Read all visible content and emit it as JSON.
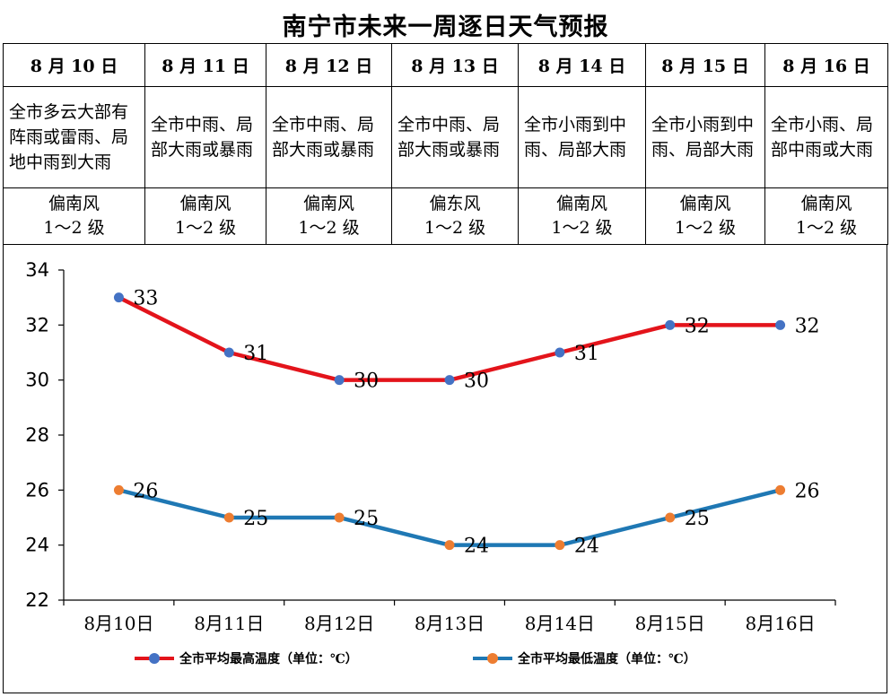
{
  "title": "南宁市未来一周逐日天气预报",
  "forecast": [
    {
      "date": "8 月 10 日",
      "desc": "全市多云大部有阵雨或雷雨、局地中雨到大雨",
      "wind": "偏南风",
      "level": "1～2 级"
    },
    {
      "date": "8 月 11 日",
      "desc": "全市中雨、局部大雨或暴雨",
      "wind": "偏南风",
      "level": "1～2 级"
    },
    {
      "date": "8 月 12 日",
      "desc": "全市中雨、局部大雨或暴雨",
      "wind": "偏南风",
      "level": "1～2 级"
    },
    {
      "date": "8 月 13 日",
      "desc": "全市中雨、局部大雨或暴雨",
      "wind": "偏东风",
      "level": "1～2 级"
    },
    {
      "date": "8 月 14 日",
      "desc": "全市小雨到中雨、局部大雨",
      "wind": "偏南风",
      "level": "1～2 级"
    },
    {
      "date": "8 月 15 日",
      "desc": "全市小雨到中雨、局部大雨",
      "wind": "偏南风",
      "level": "1～2 级"
    },
    {
      "date": "8 月 16 日",
      "desc": "全市小雨、局部中雨或大雨",
      "wind": "偏南风",
      "level": "1～2 级"
    }
  ],
  "chart_data": {
    "type": "line",
    "categories": [
      "8月10日",
      "8月11日",
      "8月12日",
      "8月13日",
      "8月14日",
      "8月15日",
      "8月16日"
    ],
    "series": [
      {
        "name": "全市平均最高温度（单位：℃）",
        "values": [
          33,
          31,
          30,
          30,
          31,
          32,
          32
        ],
        "line_color": "#e3141b",
        "marker_color": "#4472c4"
      },
      {
        "name": "全市平均最低温度（单位：℃）",
        "values": [
          26,
          25,
          25,
          24,
          24,
          25,
          26
        ],
        "line_color": "#1f78b4",
        "marker_color": "#ed7d31"
      }
    ],
    "ylim": [
      22,
      34
    ],
    "yticks": [
      22,
      24,
      26,
      28,
      30,
      32,
      34
    ],
    "grid": false,
    "data_labels": true,
    "legend": "bottom"
  }
}
